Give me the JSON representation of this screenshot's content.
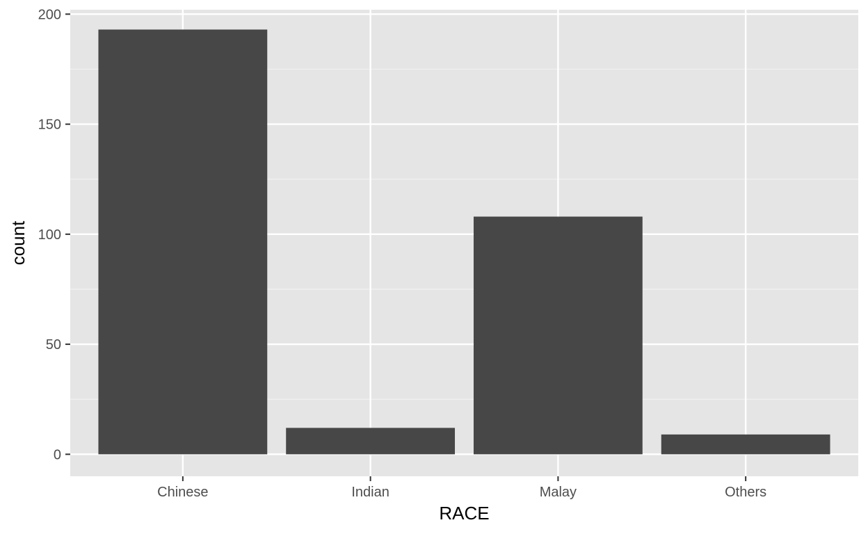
{
  "chart_data": {
    "type": "bar",
    "title": "",
    "xlabel": "RACE",
    "ylabel": "count",
    "categories": [
      "Chinese",
      "Indian",
      "Malay",
      "Others"
    ],
    "values": [
      193,
      12,
      108,
      9
    ],
    "ylim": [
      -10,
      202
    ],
    "yticks": [
      0,
      50,
      100,
      150,
      200
    ],
    "ytick_labels": [
      "0",
      "50",
      "100",
      "150",
      "200"
    ],
    "grid": true,
    "legend": "none",
    "colors": {
      "bar": "#474747",
      "panel_background": "#e5e5e5",
      "grid_major": "#ffffff",
      "grid_minor": "#f2f2f2",
      "tick": "#333333"
    }
  }
}
